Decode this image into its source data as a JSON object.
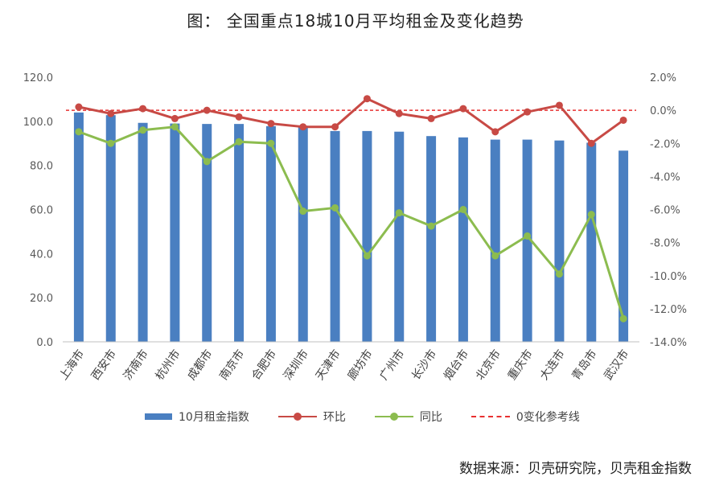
{
  "title": "图： 全国重点18城10月平均租金及变化趋势",
  "source": "数据来源：贝壳研究院，贝壳租金指数",
  "legend": {
    "bar": "10月租金指数",
    "mom": "环比",
    "yoy": "同比",
    "ref": "0变化参考线"
  },
  "colors": {
    "bar": "#4a7fc1",
    "mom": "#c84a45",
    "yoy": "#8cbc4f",
    "ref": "#e83030",
    "axis": "#bfbfbf",
    "text": "#595959"
  },
  "chart_data": {
    "type": "bar",
    "categories": [
      "上海市",
      "西安市",
      "济南市",
      "杭州市",
      "成都市",
      "南京市",
      "合肥市",
      "深圳市",
      "天津市",
      "廊坊市",
      "广州市",
      "长沙市",
      "烟台市",
      "北京市",
      "重庆市",
      "大连市",
      "青岛市",
      "武汉市"
    ],
    "series": [
      {
        "name": "10月租金指数",
        "type": "bar",
        "axis": "left",
        "values": [
          104.0,
          102.8,
          99.3,
          99.0,
          98.8,
          98.8,
          97.8,
          98.0,
          95.6,
          95.6,
          95.3,
          93.3,
          92.7,
          91.7,
          91.7,
          91.3,
          90.3,
          86.7
        ]
      },
      {
        "name": "环比",
        "type": "line",
        "axis": "right",
        "values": [
          0.2,
          -0.2,
          0.1,
          -0.5,
          0.0,
          -0.4,
          -0.8,
          -1.0,
          -1.0,
          0.7,
          -0.2,
          -0.5,
          0.1,
          -1.3,
          -0.1,
          0.3,
          -2.0,
          -0.6
        ]
      },
      {
        "name": "同比",
        "type": "line",
        "axis": "right",
        "values": [
          -1.3,
          -2.0,
          -1.2,
          -1.0,
          -3.1,
          -1.9,
          -2.0,
          -6.1,
          -5.9,
          -8.8,
          -6.2,
          -7.0,
          -6.0,
          -8.8,
          -7.6,
          -9.9,
          -6.3,
          -12.6
        ]
      },
      {
        "name": "0变化参考线",
        "type": "reference",
        "axis": "right",
        "value": 0
      }
    ],
    "y_left": {
      "min": 0,
      "max": 120,
      "step": 20,
      "ticks": [
        "0.0",
        "20.0",
        "40.0",
        "60.0",
        "80.0",
        "100.0",
        "120.0"
      ]
    },
    "y_right": {
      "min": -14,
      "max": 2,
      "step": 2,
      "ticks": [
        "-14.0%",
        "-12.0%",
        "-10.0%",
        "-8.0%",
        "-6.0%",
        "-4.0%",
        "-2.0%",
        "0.0%",
        "2.0%"
      ]
    },
    "grid": false,
    "legend_position": "bottom"
  }
}
